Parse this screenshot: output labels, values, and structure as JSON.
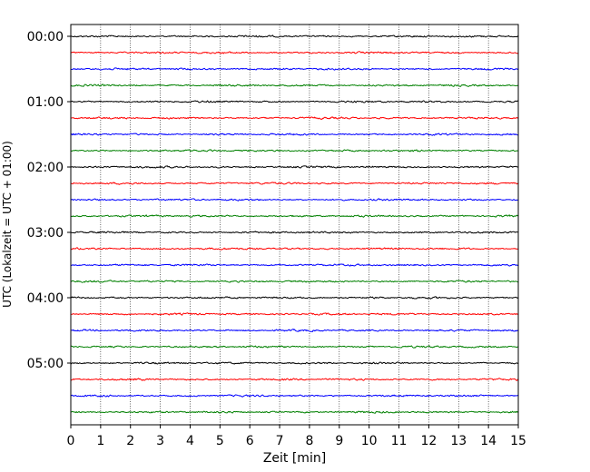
{
  "chart_data": {
    "type": "line",
    "title": "",
    "xlabel": "Zeit  [min]",
    "ylabel": "UTC (Lokalzeit = UTC + 01:00)",
    "xlim": [
      0,
      15
    ],
    "x_ticks": [
      0,
      1,
      2,
      3,
      4,
      5,
      6,
      7,
      8,
      9,
      10,
      11,
      12,
      13,
      14,
      15
    ],
    "y_ticks": [
      "00:00",
      "01:00",
      "02:00",
      "03:00",
      "04:00",
      "05:00"
    ],
    "trace_interval_minutes": 15,
    "trace_count": 24,
    "trace_colors": [
      "#000000",
      "#ff0000",
      "#0000ff",
      "#008000"
    ],
    "grid": "vertical-dotted",
    "legend": "none",
    "series": [
      {
        "start": "00:00",
        "color": "#000000"
      },
      {
        "start": "00:15",
        "color": "#ff0000"
      },
      {
        "start": "00:30",
        "color": "#0000ff"
      },
      {
        "start": "00:45",
        "color": "#008000"
      },
      {
        "start": "01:00",
        "color": "#000000"
      },
      {
        "start": "01:15",
        "color": "#ff0000"
      },
      {
        "start": "01:30",
        "color": "#0000ff"
      },
      {
        "start": "01:45",
        "color": "#008000"
      },
      {
        "start": "02:00",
        "color": "#000000"
      },
      {
        "start": "02:15",
        "color": "#ff0000"
      },
      {
        "start": "02:30",
        "color": "#0000ff"
      },
      {
        "start": "02:45",
        "color": "#008000"
      },
      {
        "start": "03:00",
        "color": "#000000"
      },
      {
        "start": "03:15",
        "color": "#ff0000"
      },
      {
        "start": "03:30",
        "color": "#0000ff"
      },
      {
        "start": "03:45",
        "color": "#008000"
      },
      {
        "start": "04:00",
        "color": "#000000"
      },
      {
        "start": "04:15",
        "color": "#ff0000"
      },
      {
        "start": "04:30",
        "color": "#0000ff"
      },
      {
        "start": "04:45",
        "color": "#008000"
      },
      {
        "start": "05:00",
        "color": "#000000"
      },
      {
        "start": "05:15",
        "color": "#ff0000"
      },
      {
        "start": "05:30",
        "color": "#0000ff"
      },
      {
        "start": "05:45",
        "color": "#008000"
      }
    ]
  }
}
